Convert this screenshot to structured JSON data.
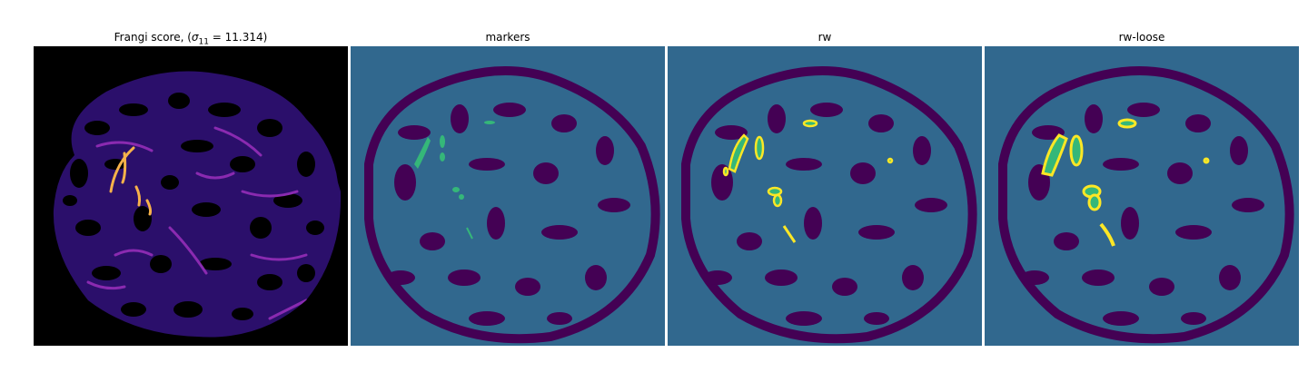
{
  "panels": [
    {
      "title_prefix": "Frangi score, (",
      "title_sigma": "σ",
      "title_sub": "11",
      "title_suffix": " = 11.314)"
    },
    {
      "title": "markers"
    },
    {
      "title": "rw"
    },
    {
      "title": "rw-loose"
    }
  ],
  "colors": {
    "frangi_bg": "#000000",
    "frangi_tissue": "#2b0f6b",
    "frangi_bright": "#8a2ab0",
    "frangi_hot": "#f7b24a",
    "label_bg": "#31688e",
    "label_tissue": "#440154",
    "label_marker": "#35b779",
    "label_edge": "#fde725"
  }
}
